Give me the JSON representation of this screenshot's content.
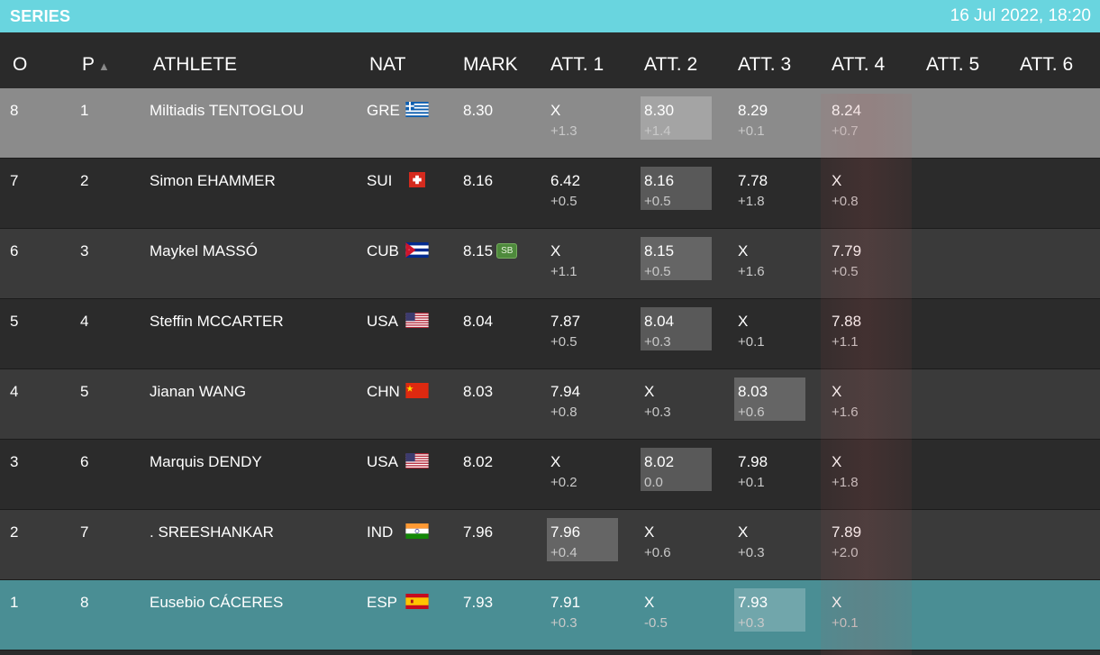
{
  "header_bar": {
    "title": "SERIES",
    "datetime": "16 Jul 2022, 18:20"
  },
  "columns": {
    "order": "O",
    "place": "P",
    "place_sort": "▲",
    "athlete": "ATHLETE",
    "nat": "NAT",
    "mark": "MARK",
    "att1": "ATT. 1",
    "att2": "ATT. 2",
    "att3": "ATT. 3",
    "att4": "ATT. 4",
    "att5": "ATT. 5",
    "att6": "ATT. 6"
  },
  "rows": [
    {
      "order": "8",
      "place": "1",
      "athlete": "Miltiadis TENTOGLOU",
      "nat": "GRE",
      "flag": "greece-flag-icon",
      "mark": "8.30",
      "badge": "",
      "attempts": [
        {
          "val": "X",
          "wind": "+1.3",
          "best": false
        },
        {
          "val": "8.30",
          "wind": "+1.4",
          "best": true
        },
        {
          "val": "8.29",
          "wind": "+0.1",
          "best": false
        },
        {
          "val": "8.24",
          "wind": "+0.7",
          "best": false
        }
      ]
    },
    {
      "order": "7",
      "place": "2",
      "athlete": "Simon EHAMMER",
      "nat": "SUI",
      "flag": "switzerland-flag-icon",
      "mark": "8.16",
      "badge": "",
      "attempts": [
        {
          "val": "6.42",
          "wind": "+0.5",
          "best": false
        },
        {
          "val": "8.16",
          "wind": "+0.5",
          "best": true
        },
        {
          "val": "7.78",
          "wind": "+1.8",
          "best": false
        },
        {
          "val": "X",
          "wind": "+0.8",
          "best": false
        }
      ]
    },
    {
      "order": "6",
      "place": "3",
      "athlete": "Maykel MASSÓ",
      "nat": "CUB",
      "flag": "cuba-flag-icon",
      "mark": "8.15",
      "badge": "SB",
      "attempts": [
        {
          "val": "X",
          "wind": "+1.1",
          "best": false
        },
        {
          "val": "8.15",
          "wind": "+0.5",
          "best": true
        },
        {
          "val": "X",
          "wind": "+1.6",
          "best": false
        },
        {
          "val": "7.79",
          "wind": "+0.5",
          "best": false
        }
      ]
    },
    {
      "order": "5",
      "place": "4",
      "athlete": "Steffin MCCARTER",
      "nat": "USA",
      "flag": "usa-flag-icon",
      "mark": "8.04",
      "badge": "",
      "attempts": [
        {
          "val": "7.87",
          "wind": "+0.5",
          "best": false
        },
        {
          "val": "8.04",
          "wind": "+0.3",
          "best": true
        },
        {
          "val": "X",
          "wind": "+0.1",
          "best": false
        },
        {
          "val": "7.88",
          "wind": "+1.1",
          "best": false
        }
      ]
    },
    {
      "order": "4",
      "place": "5",
      "athlete": "Jianan WANG",
      "nat": "CHN",
      "flag": "china-flag-icon",
      "mark": "8.03",
      "badge": "",
      "attempts": [
        {
          "val": "7.94",
          "wind": "+0.8",
          "best": false
        },
        {
          "val": "X",
          "wind": "+0.3",
          "best": false
        },
        {
          "val": "8.03",
          "wind": "+0.6",
          "best": true
        },
        {
          "val": "X",
          "wind": "+1.6",
          "best": false
        }
      ]
    },
    {
      "order": "3",
      "place": "6",
      "athlete": "Marquis DENDY",
      "nat": "USA",
      "flag": "usa-flag-icon",
      "mark": "8.02",
      "badge": "",
      "attempts": [
        {
          "val": "X",
          "wind": "+0.2",
          "best": false
        },
        {
          "val": "8.02",
          "wind": "0.0",
          "best": true
        },
        {
          "val": "7.98",
          "wind": "+0.1",
          "best": false
        },
        {
          "val": "X",
          "wind": "+1.8",
          "best": false
        }
      ]
    },
    {
      "order": "2",
      "place": "7",
      "athlete": ". SREESHANKAR",
      "nat": "IND",
      "flag": "india-flag-icon",
      "mark": "7.96",
      "badge": "",
      "attempts": [
        {
          "val": "7.96",
          "wind": "+0.4",
          "best": true
        },
        {
          "val": "X",
          "wind": "+0.6",
          "best": false
        },
        {
          "val": "X",
          "wind": "+0.3",
          "best": false
        },
        {
          "val": "7.89",
          "wind": "+2.0",
          "best": false
        }
      ]
    },
    {
      "order": "1",
      "place": "8",
      "athlete": "Eusebio CÁCERES",
      "nat": "ESP",
      "flag": "spain-flag-icon",
      "mark": "7.93",
      "badge": "",
      "attempts": [
        {
          "val": "7.91",
          "wind": "+0.3",
          "best": false
        },
        {
          "val": "X",
          "wind": "-0.5",
          "best": false
        },
        {
          "val": "7.93",
          "wind": "+0.3",
          "best": true
        },
        {
          "val": "X",
          "wind": "+0.1",
          "best": false
        }
      ]
    }
  ],
  "colors": {
    "topbar": "#69d5df",
    "row_highlight_first": "#8b8b8b",
    "row_alt_dark": "#2b2b2b",
    "row_alt_mid": "#3a3a3a",
    "row_highlight_last": "#4a8e94",
    "sb_badge": "#4e8a3c"
  }
}
